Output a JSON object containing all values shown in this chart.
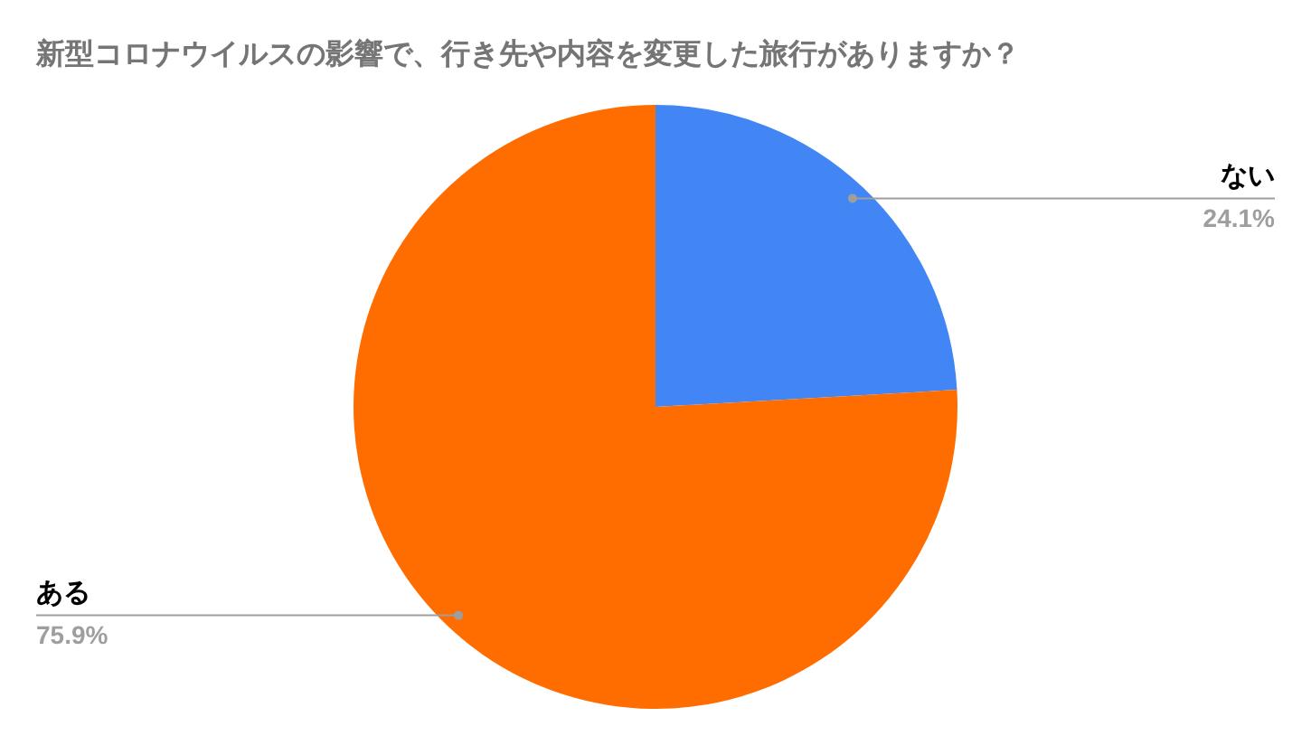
{
  "chart_data": {
    "type": "pie",
    "title": "新型コロナウイルスの影響で、行き先や内容を変更した旅行がありますか？",
    "categories": [
      "ない",
      "ある"
    ],
    "values": [
      24.1,
      75.9
    ],
    "colors": [
      "#4285f4",
      "#ff6d01"
    ],
    "value_labels": [
      "24.1%",
      "75.9%"
    ],
    "legend": false
  }
}
